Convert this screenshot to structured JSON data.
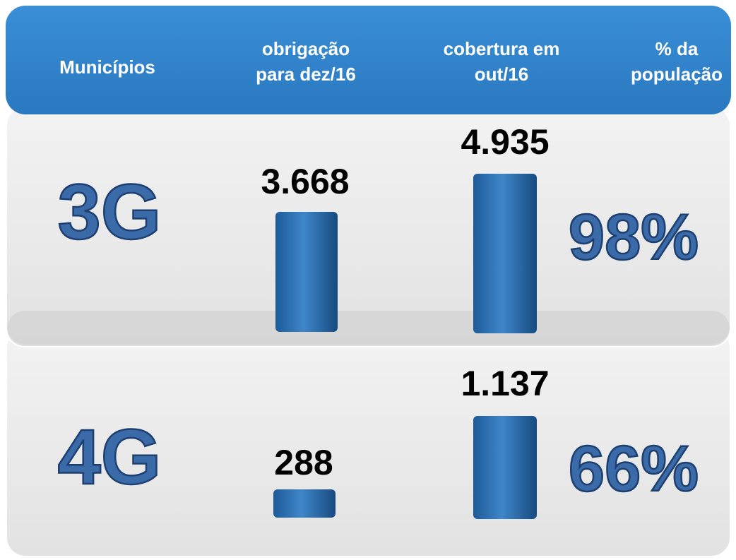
{
  "header": {
    "columns": [
      [
        "Municípios"
      ],
      [
        "obrigação",
        "para dez/16"
      ],
      [
        "cobertura em",
        "out/16"
      ],
      [
        "% da",
        "população"
      ]
    ]
  },
  "rows": [
    {
      "label": "3G",
      "obrigacao": "3.668",
      "cobertura": "4.935",
      "populacao": "98%"
    },
    {
      "label": "4G",
      "obrigacao": "288",
      "cobertura": "1.137",
      "populacao": "66%"
    }
  ]
}
